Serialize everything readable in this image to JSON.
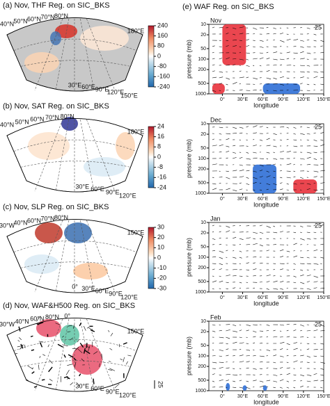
{
  "left_panels": [
    {
      "title": "(a) Nov, THF Reg. on SIC_BKS",
      "colorbar_ticks": [
        240,
        160,
        80,
        0,
        -80,
        -160,
        -240
      ],
      "map_labels": [
        "40°N",
        "50°N",
        "60°N",
        "70°N",
        "80°N",
        "30°E",
        "60°E",
        "90°E",
        "120°E",
        "150°E",
        "180°E"
      ]
    },
    {
      "title": "(b) Nov, SAT Reg. on SIC_BKS",
      "colorbar_ticks": [
        24,
        16,
        8,
        0,
        -8,
        -16,
        -24
      ],
      "map_labels": [
        "40°N",
        "50°N",
        "60°N",
        "70°N",
        "80°N",
        "30°E",
        "60°E",
        "90°E",
        "120°E",
        "180°E"
      ]
    },
    {
      "title": "(c) Nov, SLP Reg. on SIC_BKS",
      "colorbar_ticks": [
        30,
        20,
        10,
        0,
        -10,
        -20,
        -30
      ],
      "map_labels": [
        "30°W",
        "40°N",
        "60°N",
        "70°N",
        "80°N",
        "0°",
        "30°E",
        "60°E",
        "90°E",
        "120°E",
        "150°E"
      ]
    },
    {
      "title": "(d) Nov, WAF&H500 Reg. on SIC_BKS",
      "reference": "25",
      "map_labels": [
        "30°W",
        "40°N",
        "60°N",
        "80°N",
        "0°",
        "30°E",
        "60°E",
        "90°E",
        "120°E",
        "150°E"
      ]
    }
  ],
  "right": {
    "title": "(e) WAF Reg. on SIC_BKS",
    "ylabel": "pressure (mb)",
    "xlabel": "longitude",
    "reference": "25",
    "ylim": [
      1000,
      10
    ],
    "yticks": [
      10,
      20,
      50,
      100,
      200,
      500,
      1000
    ],
    "xlim": [
      -20,
      150
    ],
    "xticks": [
      {
        "value": 0,
        "label": "0°"
      },
      {
        "value": 30,
        "label": "30°E"
      },
      {
        "value": 60,
        "label": "60°E"
      },
      {
        "value": 90,
        "label": "90°E"
      },
      {
        "value": 120,
        "label": "120°E"
      },
      {
        "value": 150,
        "label": "150°E"
      }
    ],
    "months": [
      "Nov",
      "Dec",
      "Jan",
      "Feb"
    ]
  }
}
